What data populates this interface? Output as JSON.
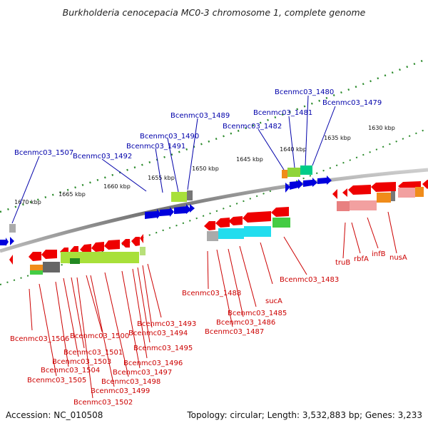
{
  "title": "Burkholderia cenocepacia MC0-3 chromosome 1, complete genome",
  "accession": "Accession: NC_010508",
  "topology": "Topology: circular; Length: 3,532,883 bp; Genes: 3,233",
  "ticks": [
    "1630 kbp",
    "1635 kbp",
    "1640 kbp",
    "1645 kbp",
    "1650 kbp",
    "1655 kbp",
    "1660 kbp",
    "1665 kbp",
    "1670 kbp"
  ],
  "upper_labels": [
    "Bcenmc03_1480",
    "Bcenmc03_1479",
    "Bcenmc03_1481",
    "Bcenmc03_1482",
    "Bcenmc03_1489",
    "Bcenmc03_1490",
    "Bcenmc03_1491",
    "Bcenmc03_1492",
    "Bcenmc03_1507"
  ],
  "lower_labels": [
    "Bcenmc03_1483",
    "truB",
    "rbfA",
    "infB",
    "nusA",
    "sucA",
    "Bcenmc03_1485",
    "Bcenmc03_1486",
    "Bcenmc03_1487",
    "Bcenmc03_1488",
    "Bcenmc03_1493",
    "Bcenmc03_1494",
    "Bcenmc03_1495",
    "Bcenmc03_1496",
    "Bcenmc03_1497",
    "Bcenmc03_1498",
    "Bcenmc03_1499",
    "Bcenmc03_1500",
    "Bcenmc03_1501",
    "Bcenmc03_1503",
    "Bcenmc03_1504",
    "Bcenmc03_1505",
    "Bcenmc03_1506",
    "Bcenmc03_1502"
  ],
  "colors": {
    "forward_gene": "#0000dd",
    "reverse_gene": "#ee0000",
    "label_forward": "#0000aa",
    "label_reverse": "#cc0000",
    "tick_green": "#228822",
    "backbone": "#777777"
  }
}
